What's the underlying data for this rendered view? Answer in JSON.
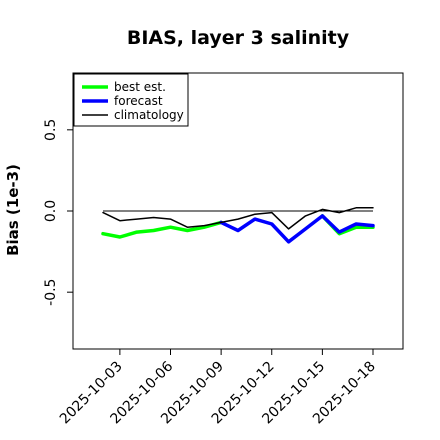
{
  "chart_data": {
    "type": "line",
    "title": "BIAS, layer 3 salinity",
    "xlabel": "",
    "ylabel": "Bias (1e-3)",
    "ylim": [
      -0.85,
      0.85
    ],
    "yticks": [
      -0.5,
      0.0,
      0.5
    ],
    "ytick_labels": [
      "-0.5",
      "0.0",
      "0.5"
    ],
    "xticks": [
      "2025-10-03",
      "2025-10-06",
      "2025-10-09",
      "2025-10-12",
      "2025-10-15",
      "2025-10-18"
    ],
    "xtick_colors": [
      "#000000",
      "#000000",
      "#228B22",
      "#000000",
      "#000000",
      "#000000"
    ],
    "x": [
      "2025-10-02",
      "2025-10-03",
      "2025-10-04",
      "2025-10-05",
      "2025-10-06",
      "2025-10-07",
      "2025-10-08",
      "2025-10-09",
      "2025-10-10",
      "2025-10-11",
      "2025-10-12",
      "2025-10-13",
      "2025-10-14",
      "2025-10-15",
      "2025-10-16",
      "2025-10-17",
      "2025-10-18"
    ],
    "reference_line": 0,
    "legend_position": "top-left",
    "grid": false,
    "series": [
      {
        "name": "best est.",
        "color": "#00ff00",
        "values": [
          -0.14,
          -0.16,
          -0.13,
          -0.12,
          -0.1,
          -0.12,
          -0.1,
          -0.07,
          null,
          null,
          null,
          null,
          null,
          -0.03,
          -0.14,
          -0.1,
          -0.1
        ]
      },
      {
        "name": "forecast",
        "color": "#0000ff",
        "values": [
          null,
          null,
          null,
          null,
          null,
          null,
          null,
          -0.07,
          -0.12,
          -0.05,
          -0.08,
          -0.19,
          -0.11,
          -0.03,
          -0.13,
          -0.08,
          -0.09
        ]
      },
      {
        "name": "climatology",
        "color": "#000000",
        "values": [
          -0.01,
          -0.06,
          -0.05,
          -0.04,
          -0.05,
          -0.1,
          -0.09,
          -0.07,
          -0.05,
          -0.02,
          -0.01,
          -0.11,
          -0.03,
          0.01,
          -0.01,
          0.02,
          0.02
        ]
      }
    ]
  }
}
